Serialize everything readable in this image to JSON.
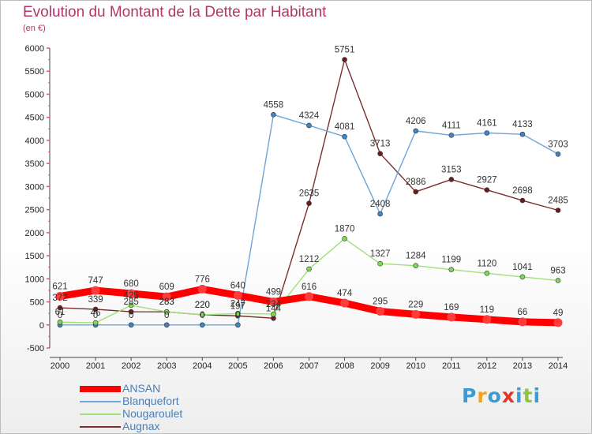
{
  "header": {
    "title": "Evolution du Montant de la Dette par Habitant",
    "unit": "(en €)"
  },
  "brand": {
    "text": "Proxiti",
    "colors": [
      "#3a9bd5",
      "#f7a21b",
      "#3a9bd5",
      "#e6332a",
      "#3a9bd5",
      "#8cc63f",
      "#3a9bd5"
    ]
  },
  "chart_data": {
    "type": "line",
    "x": [
      "2000",
      "2001",
      "2002",
      "2003",
      "2004",
      "2005",
      "2006",
      "2007",
      "2008",
      "2009",
      "2010",
      "2011",
      "2012",
      "2013",
      "2014"
    ],
    "ylim": [
      -500,
      6000
    ],
    "yticks": [
      "-500",
      "0",
      "500",
      "1000",
      "1500",
      "2000",
      "2500",
      "3000",
      "3500",
      "4000",
      "4500",
      "5000",
      "5500",
      "6000"
    ],
    "grid": false,
    "legend_position": "bottom-left",
    "series": [
      {
        "name": "ANSAN",
        "color": "#ff0000",
        "marker": "#ff3b3b",
        "values": [
          621,
          747,
          680,
          609,
          776,
          640,
          499,
          616,
          474,
          295,
          229,
          169,
          119,
          66,
          49
        ],
        "labels": [
          "621",
          "747",
          "680",
          "609",
          "776",
          "640",
          "499",
          "616",
          "474",
          "295",
          "229",
          "169",
          "119",
          "66",
          "49"
        ]
      },
      {
        "name": "Blanquefort",
        "color": "#6fa5d6",
        "marker": "#3d85c6",
        "values": [
          0,
          0,
          0,
          0,
          0,
          0,
          4558,
          4324,
          4081,
          2408,
          4206,
          4111,
          4161,
          4133,
          3703
        ],
        "labels": [
          "0",
          "0",
          "0",
          "0",
          "0",
          "0",
          "4558",
          "4324",
          "4081",
          "2408",
          "4206",
          "4111",
          "4161",
          "4133",
          "3703"
        ]
      },
      {
        "name": "Nougaroulet",
        "color": "#9fe07a",
        "marker": "#7ed957",
        "values": [
          61,
          46,
          425,
          283,
          220,
          247,
          234,
          1212,
          1870,
          1327,
          1284,
          1199,
          1120,
          1041,
          963
        ],
        "labels": [
          "61",
          "46",
          "425",
          "283",
          "220",
          "247",
          "234",
          "1212",
          "1870",
          "1327",
          "1284",
          "1199",
          "1120",
          "1041",
          "963"
        ]
      },
      {
        "name": "Augnax",
        "color": "#7a2f2f",
        "marker": "#6b1d1d",
        "values": [
          372,
          339,
          285,
          283,
          220,
          197,
          144,
          2635,
          5751,
          3713,
          2886,
          3153,
          2927,
          2698,
          2485
        ],
        "labels": [
          "372",
          "339",
          "285",
          "283",
          "220",
          "197",
          "144",
          "2635",
          "5751",
          "3713",
          "2886",
          "3153",
          "2927",
          "2698",
          "2485"
        ]
      }
    ]
  }
}
